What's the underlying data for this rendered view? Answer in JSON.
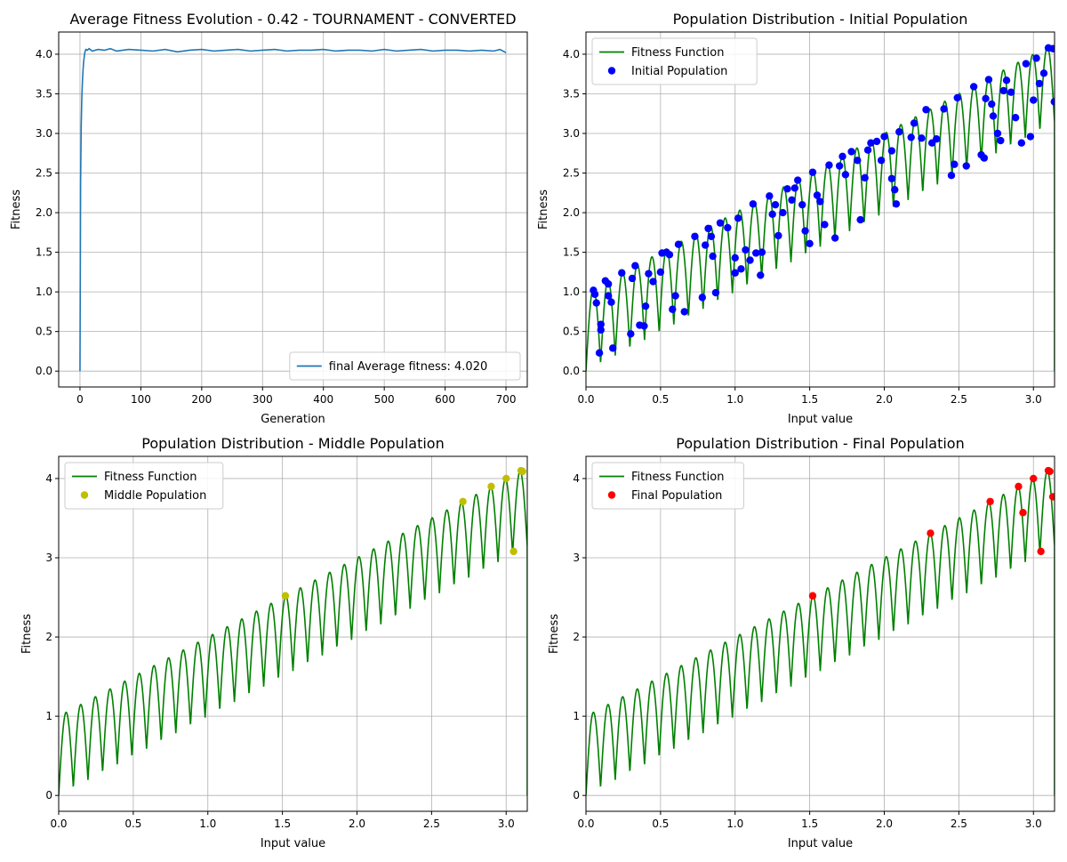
{
  "chart_data": [
    {
      "type": "line",
      "title": "Average Fitness Evolution  - 0.42 - TOURNAMENT - CONVERTED",
      "xlabel": "Generation",
      "ylabel": "Fitness",
      "xlim": [
        -35,
        735
      ],
      "ylim": [
        -0.2,
        4.28
      ],
      "xticks": [
        0,
        100,
        200,
        300,
        400,
        500,
        600,
        700
      ],
      "yticks": [
        0.0,
        0.5,
        1.0,
        1.5,
        2.0,
        2.5,
        3.0,
        3.5,
        4.0
      ],
      "xtick_labels": [
        "0",
        "100",
        "200",
        "300",
        "400",
        "500",
        "600",
        "700"
      ],
      "ytick_labels": [
        "0.0",
        "0.5",
        "1.0",
        "1.5",
        "2.0",
        "2.5",
        "3.0",
        "3.5",
        "4.0"
      ],
      "grid": true,
      "legend_position": "lower-right",
      "series": [
        {
          "name": "final Average fitness: 4.020",
          "color": "#1f77b4",
          "x": [
            0,
            1,
            2,
            3,
            4,
            5,
            6,
            7,
            8,
            9,
            10,
            12,
            15,
            20,
            30,
            40,
            50,
            60,
            80,
            100,
            120,
            140,
            160,
            180,
            200,
            220,
            240,
            260,
            280,
            300,
            320,
            340,
            360,
            380,
            400,
            420,
            440,
            460,
            480,
            500,
            520,
            540,
            560,
            580,
            600,
            620,
            640,
            660,
            680,
            690,
            695,
            700
          ],
          "y": [
            0.0,
            2.4,
            3.1,
            3.45,
            3.65,
            3.8,
            3.9,
            3.97,
            4.02,
            4.05,
            4.06,
            4.05,
            4.07,
            4.04,
            4.06,
            4.05,
            4.07,
            4.04,
            4.06,
            4.05,
            4.04,
            4.06,
            4.03,
            4.05,
            4.06,
            4.04,
            4.05,
            4.06,
            4.04,
            4.05,
            4.06,
            4.04,
            4.05,
            4.05,
            4.06,
            4.04,
            4.05,
            4.05,
            4.04,
            4.06,
            4.04,
            4.05,
            4.06,
            4.04,
            4.05,
            4.05,
            4.04,
            4.05,
            4.04,
            4.06,
            4.04,
            4.02
          ]
        }
      ]
    },
    {
      "type": "scatter",
      "title": "Population Distribution - Initial Population",
      "xlabel": "Input value",
      "ylabel": "Fitness",
      "xlim": [
        0,
        3.14159
      ],
      "ylim": [
        -0.2,
        4.28
      ],
      "xticks": [
        0.0,
        0.5,
        1.0,
        1.5,
        2.0,
        2.5,
        3.0
      ],
      "yticks": [
        0.0,
        0.5,
        1.0,
        1.5,
        2.0,
        2.5,
        3.0,
        3.5,
        4.0
      ],
      "xtick_labels": [
        "0.0",
        "0.5",
        "1.0",
        "1.5",
        "2.0",
        "2.5",
        "3.0"
      ],
      "ytick_labels": [
        "0.0",
        "0.5",
        "1.0",
        "1.5",
        "2.0",
        "2.5",
        "3.0",
        "3.5",
        "4.0"
      ],
      "grid": true,
      "legend_position": "top-left",
      "function": {
        "name": "Fitness Function",
        "color": "#008000"
      },
      "series": [
        {
          "name": "Initial Population",
          "color": "#0000ff",
          "x": [
            0.05,
            0.06,
            0.07,
            0.09,
            0.1,
            0.1,
            0.13,
            0.15,
            0.15,
            0.17,
            0.18,
            0.24,
            0.3,
            0.31,
            0.33,
            0.36,
            0.39,
            0.4,
            0.42,
            0.45,
            0.5,
            0.51,
            0.54,
            0.56,
            0.58,
            0.6,
            0.62,
            0.66,
            0.73,
            0.78,
            0.8,
            0.82,
            0.84,
            0.85,
            0.87,
            0.9,
            0.95,
            1.0,
            1.0,
            1.02,
            1.04,
            1.07,
            1.1,
            1.12,
            1.14,
            1.17,
            1.18,
            1.23,
            1.25,
            1.27,
            1.29,
            1.32,
            1.35,
            1.38,
            1.4,
            1.42,
            1.45,
            1.47,
            1.5,
            1.52,
            1.55,
            1.57,
            1.6,
            1.63,
            1.67,
            1.7,
            1.72,
            1.74,
            1.78,
            1.82,
            1.84,
            1.87,
            1.89,
            1.91,
            1.95,
            1.98,
            2.0,
            2.05,
            2.05,
            2.07,
            2.08,
            2.1,
            2.18,
            2.2,
            2.25,
            2.28,
            2.32,
            2.35,
            2.4,
            2.45,
            2.47,
            2.49,
            2.55,
            2.6,
            2.65,
            2.67,
            2.68,
            2.7,
            2.72,
            2.73,
            2.76,
            2.78,
            2.8,
            2.82,
            2.85,
            2.88,
            2.92,
            2.95,
            2.98,
            3.0,
            3.02,
            3.04,
            3.07,
            3.1,
            3.13,
            3.14
          ],
          "y": [
            1.02,
            0.97,
            0.86,
            0.23,
            0.52,
            0.59,
            1.14,
            1.1,
            0.95,
            0.87,
            0.29,
            1.24,
            0.47,
            1.17,
            1.33,
            0.58,
            0.57,
            0.82,
            1.23,
            1.13,
            1.25,
            1.49,
            1.5,
            1.47,
            0.78,
            0.95,
            1.6,
            0.75,
            1.7,
            0.93,
            1.59,
            1.8,
            1.7,
            1.45,
            0.99,
            1.87,
            1.81,
            1.24,
            1.43,
            1.93,
            1.29,
            1.53,
            1.4,
            2.11,
            1.49,
            1.21,
            1.5,
            2.21,
            1.98,
            2.1,
            1.71,
            2.0,
            2.3,
            2.16,
            2.31,
            2.41,
            2.1,
            1.77,
            1.61,
            2.51,
            2.22,
            2.14,
            1.85,
            2.6,
            1.68,
            2.59,
            2.71,
            2.48,
            2.77,
            2.66,
            1.91,
            2.44,
            2.79,
            2.88,
            2.9,
            2.66,
            2.96,
            2.78,
            2.43,
            2.29,
            2.11,
            3.02,
            2.95,
            3.13,
            2.94,
            3.3,
            2.88,
            2.93,
            3.31,
            2.47,
            2.61,
            3.45,
            2.59,
            3.59,
            2.73,
            2.69,
            3.44,
            3.68,
            3.37,
            3.22,
            3.0,
            2.91,
            3.54,
            3.67,
            3.52,
            3.2,
            2.88,
            3.88,
            2.96,
            3.42,
            3.95,
            3.63,
            3.76,
            4.08,
            4.07,
            3.4
          ]
        }
      ]
    },
    {
      "type": "scatter",
      "title": "Population Distribution - Middle Population",
      "xlabel": "Input value",
      "ylabel": "Fitness",
      "xlim": [
        0,
        3.14159
      ],
      "ylim": [
        -0.2,
        4.28
      ],
      "xticks": [
        0.0,
        0.5,
        1.0,
        1.5,
        2.0,
        2.5,
        3.0
      ],
      "yticks": [
        0,
        1,
        2,
        3,
        4
      ],
      "xtick_labels": [
        "0.0",
        "0.5",
        "1.0",
        "1.5",
        "2.0",
        "2.5",
        "3.0"
      ],
      "ytick_labels": [
        "0",
        "1",
        "2",
        "3",
        "4"
      ],
      "grid": true,
      "legend_position": "top-left",
      "function": {
        "name": "Fitness Function",
        "color": "#008000"
      },
      "series": [
        {
          "name": "Middle Population",
          "color": "#bfbf00",
          "x": [
            1.52,
            2.71,
            2.9,
            3.0,
            3.05,
            3.1,
            3.11
          ],
          "y": [
            2.52,
            3.71,
            3.9,
            4.0,
            3.08,
            4.1,
            4.09
          ]
        }
      ]
    },
    {
      "type": "scatter",
      "title": "Population Distribution - Final Population",
      "xlabel": "Input value",
      "ylabel": "Fitness",
      "xlim": [
        0,
        3.14159
      ],
      "ylim": [
        -0.2,
        4.28
      ],
      "xticks": [
        0.0,
        0.5,
        1.0,
        1.5,
        2.0,
        2.5,
        3.0
      ],
      "yticks": [
        0,
        1,
        2,
        3,
        4
      ],
      "xtick_labels": [
        "0.0",
        "0.5",
        "1.0",
        "1.5",
        "2.0",
        "2.5",
        "3.0"
      ],
      "ytick_labels": [
        "0",
        "1",
        "2",
        "3",
        "4"
      ],
      "grid": true,
      "legend_position": "top-left",
      "function": {
        "name": "Fitness Function",
        "color": "#008000"
      },
      "series": [
        {
          "name": "Final Population",
          "color": "#ff0000",
          "x": [
            1.52,
            2.31,
            2.71,
            2.9,
            2.93,
            3.0,
            3.05,
            3.1,
            3.11,
            3.13
          ],
          "y": [
            2.52,
            3.31,
            3.71,
            3.9,
            3.57,
            4.0,
            3.08,
            4.1,
            4.09,
            3.77
          ]
        }
      ]
    }
  ]
}
